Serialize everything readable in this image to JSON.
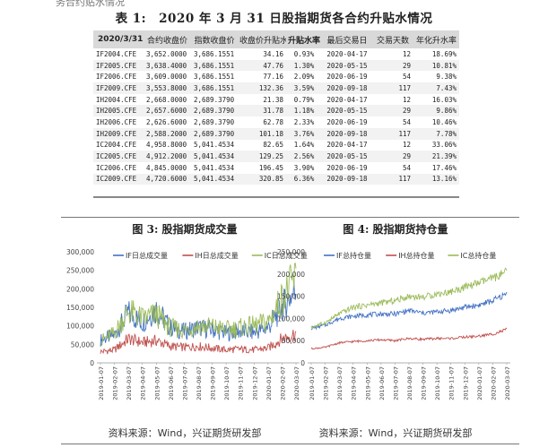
{
  "top_cut_text": "务合约贴水情况",
  "table": {
    "label": "表 1:",
    "title": "2020 年 3 月 31 日股指期货各合约升贴水情况",
    "headers": [
      "2020/3/31",
      "合约收盘价",
      "指数收盘价",
      "收盘价升贴水",
      "升贴水率",
      "最后交易日",
      "交易天数",
      "年化升水率"
    ],
    "rows": [
      [
        "IF2004.CFE",
        "3,652.0000",
        "3,686.1551",
        "34.16",
        "0.93%",
        "2020-04-17",
        "12",
        "18.69%"
      ],
      [
        "IF2005.CFE",
        "3,638.4000",
        "3,686.1551",
        "47.76",
        "1.30%",
        "2020-05-15",
        "29",
        "10.81%"
      ],
      [
        "IF2006.CFE",
        "3,609.0000",
        "3,686.1551",
        "77.16",
        "2.09%",
        "2020-06-19",
        "54",
        "9.38%"
      ],
      [
        "IF2009.CFE",
        "3,553.8000",
        "3,686.1551",
        "132.36",
        "3.59%",
        "2020-09-18",
        "117",
        "7.43%"
      ],
      [
        "IH2004.CFE",
        "2,668.0000",
        "2,689.3790",
        "21.38",
        "0.79%",
        "2020-04-17",
        "12",
        "16.03%"
      ],
      [
        "IH2005.CFE",
        "2,657.6000",
        "2,689.3790",
        "31.78",
        "1.18%",
        "2020-05-15",
        "29",
        "9.86%"
      ],
      [
        "IH2006.CFE",
        "2,626.6000",
        "2,689.3790",
        "62.78",
        "2.33%",
        "2020-06-19",
        "54",
        "10.46%"
      ],
      [
        "IH2009.CFE",
        "2,588.2000",
        "2,689.3790",
        "101.18",
        "3.76%",
        "2020-09-18",
        "117",
        "7.78%"
      ],
      [
        "IC2004.CFE",
        "4,958.8000",
        "5,041.4534",
        "82.65",
        "1.64%",
        "2020-04-17",
        "12",
        "33.06%"
      ],
      [
        "IC2005.CFE",
        "4,912.2000",
        "5,041.4534",
        "129.25",
        "2.56%",
        "2020-05-15",
        "29",
        "21.39%"
      ],
      [
        "IC2006.CFE",
        "4,845.0000",
        "5,041.4534",
        "196.45",
        "3.90%",
        "2020-06-19",
        "54",
        "17.46%"
      ],
      [
        "IC2009.CFE",
        "4,720.6000",
        "5,041.4534",
        "320.85",
        "6.36%",
        "2020-09-18",
        "117",
        "13.16%"
      ]
    ]
  },
  "colors": {
    "IF": "#4472c4",
    "IH": "#c0504d",
    "IC": "#9bbb59"
  },
  "chart_data": [
    {
      "type": "line",
      "title": "图 3:  股指期货成交量",
      "source": "资料来源：Wind，兴证期货研发部",
      "legend_position": "top",
      "x": [
        "2019-01-07",
        "2019-02-07",
        "2019-03-07",
        "2019-04-07",
        "2019-05-07",
        "2019-06-07",
        "2019-07-07",
        "2019-08-07",
        "2019-09-07",
        "2019-10-07",
        "2019-11-07",
        "2019-12-07",
        "2020-01-07",
        "2020-02-07",
        "2020-03-07"
      ],
      "ylim": [
        0,
        300000
      ],
      "yticks": [
        "0",
        "50,000",
        "100,000",
        "150,000",
        "200,000",
        "250,000",
        "300,000"
      ],
      "series": [
        {
          "name": "IF日总成交量",
          "color": "#4472c4",
          "values": [
            62000,
            75000,
            135000,
            110000,
            145000,
            95000,
            85000,
            95000,
            90000,
            80000,
            85000,
            82000,
            95000,
            150000,
            200000
          ]
        },
        {
          "name": "IH日总成交量",
          "color": "#c0504d",
          "values": [
            30000,
            35000,
            65000,
            55000,
            60000,
            45000,
            42000,
            45000,
            40000,
            35000,
            37000,
            35000,
            40000,
            65000,
            80000
          ]
        },
        {
          "name": "IC日总成交量",
          "color": "#9bbb59",
          "values": [
            60000,
            80000,
            140000,
            120000,
            130000,
            95000,
            88000,
            100000,
            98000,
            90000,
            95000,
            100000,
            110000,
            175000,
            230000
          ]
        }
      ]
    },
    {
      "type": "line",
      "title": "图 4:  股指期货持仓量",
      "source": "资料来源：Wind，兴证期货研发部",
      "legend_position": "top",
      "x": [
        "2019-01-07",
        "2019-02-07",
        "2019-03-07",
        "2019-04-07",
        "2019-05-07",
        "2019-06-07",
        "2019-07-07",
        "2019-08-07",
        "2019-09-07",
        "2019-10-07",
        "2019-11-07",
        "2019-12-07",
        "2020-01-07",
        "2020-02-07",
        "2020-03-07"
      ],
      "ylim": [
        0,
        250000
      ],
      "yticks": [
        "0",
        "50,000",
        "100,000",
        "150,000",
        "200,000",
        "250,000"
      ],
      "series": [
        {
          "name": "IF总持仓量",
          "color": "#4472c4",
          "values": [
            78000,
            85000,
            100000,
            105000,
            108000,
            110000,
            110000,
            118000,
            112000,
            115000,
            118000,
            125000,
            130000,
            140000,
            155000
          ]
        },
        {
          "name": "IH总持仓量",
          "color": "#c0504d",
          "values": [
            32000,
            35000,
            45000,
            48000,
            50000,
            52000,
            50000,
            55000,
            53000,
            55000,
            55000,
            58000,
            60000,
            65000,
            75000
          ]
        },
        {
          "name": "IC总持仓量",
          "color": "#9bbb59",
          "values": [
            80000,
            90000,
            110000,
            125000,
            130000,
            135000,
            140000,
            150000,
            148000,
            155000,
            160000,
            170000,
            180000,
            190000,
            205000
          ]
        }
      ]
    }
  ]
}
